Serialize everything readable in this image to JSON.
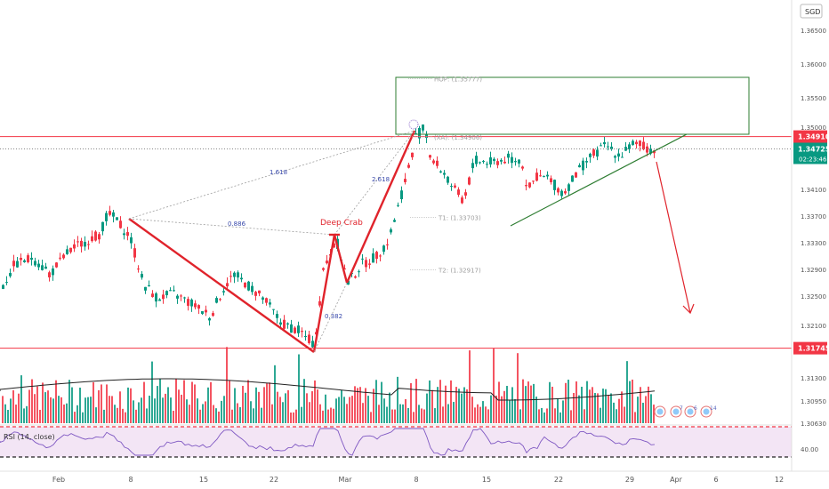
{
  "currency_label": "SGD",
  "chart_data": {
    "type": "candlestick",
    "price_axis": {
      "min": 1.3063,
      "max": 1.368,
      "ticks": [
        "1.36500",
        "1.36000",
        "1.35500",
        "1.35000",
        "1.34500",
        "1.34100",
        "1.33700",
        "1.33300",
        "1.32900",
        "1.32500",
        "1.32100",
        "1.31750",
        "1.31300",
        "1.30950",
        "1.30630"
      ]
    },
    "x_axis": {
      "labels": [
        "Feb",
        "8",
        "15",
        "22",
        "Mar",
        "8",
        "15",
        "22",
        "29",
        "Apr",
        "6",
        "12"
      ]
    },
    "badges": {
      "resistance": {
        "value": "1.34910",
        "color": "#f23645"
      },
      "current": {
        "value": "1.34725",
        "sub": "02:23:46",
        "color": "#089981"
      },
      "support": {
        "value": "1.31745",
        "color": "#f23645"
      }
    },
    "levels": {
      "resistance": 1.3491,
      "current": 1.34725,
      "support": 1.31745
    },
    "rsi": {
      "label": "RSI (14, close)",
      "tick": "40.00",
      "upper": 70,
      "lower": 30
    },
    "pattern": {
      "name": "Deep Crab",
      "ratios": [
        {
          "text": "1.618"
        },
        {
          "text": "0.886"
        },
        {
          "text": "2.618"
        },
        {
          "text": "0.382"
        }
      ],
      "targets": [
        {
          "text": "HOP: (1.35777)",
          "price": 1.35777
        },
        {
          "text": "(XA): (1.34906)",
          "price": 1.34906
        },
        {
          "text": "T1: (1.33703)",
          "price": 1.33703
        },
        {
          "text": "T2: (1.32917)",
          "price": 1.32917
        }
      ]
    },
    "grid": false,
    "colors": {
      "up": "#089981",
      "down": "#f23645",
      "pattern": "#e0232b",
      "box": "#2e7d32"
    }
  }
}
